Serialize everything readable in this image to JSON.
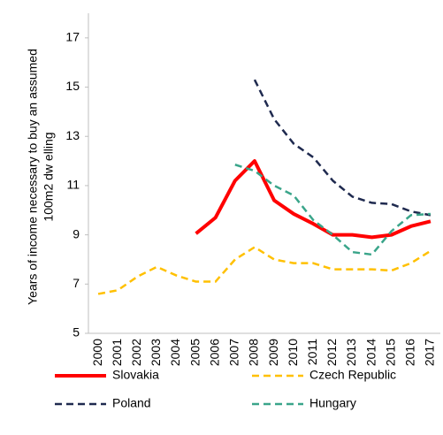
{
  "chart_data": {
    "type": "line",
    "ylabel": [
      "Years of income necessary to buy an assumed",
      "100m2 dw elling"
    ],
    "categories": [
      "2000",
      "2001",
      "2002",
      "2003",
      "2004",
      "2005",
      "2006",
      "2007",
      "2008",
      "2009",
      "2010",
      "2011",
      "2012",
      "2013",
      "2014",
      "2015",
      "2016",
      "2017"
    ],
    "series": [
      {
        "name": "Slovakia",
        "color": "#ff0000",
        "dash": false,
        "values": [
          null,
          null,
          null,
          null,
          null,
          9.05,
          9.7,
          11.2,
          12.0,
          10.4,
          9.85,
          9.45,
          9.0,
          9.0,
          8.9,
          9.0,
          9.35,
          9.55
        ]
      },
      {
        "name": "Czech Republic",
        "color": "#ffc000",
        "dash": true,
        "values": [
          6.6,
          6.75,
          7.3,
          7.7,
          7.35,
          7.1,
          7.1,
          8.0,
          8.5,
          8.0,
          7.85,
          7.85,
          7.6,
          7.6,
          7.6,
          7.55,
          7.85,
          8.35
        ]
      },
      {
        "name": "Poland",
        "color": "#1f2a4f",
        "dash": true,
        "values": [
          null,
          null,
          null,
          null,
          null,
          null,
          null,
          null,
          15.3,
          13.7,
          12.7,
          12.15,
          11.2,
          10.55,
          10.3,
          10.25,
          9.95,
          9.8
        ]
      },
      {
        "name": "Hungary",
        "color": "#3aa58a",
        "dash": true,
        "values": [
          null,
          null,
          null,
          null,
          null,
          null,
          null,
          11.85,
          11.6,
          11.0,
          10.6,
          9.6,
          9.0,
          8.3,
          8.2,
          9.15,
          9.8,
          9.85
        ]
      }
    ],
    "ylim": [
      5,
      18
    ],
    "yticks": [
      5,
      7,
      9,
      11,
      13,
      15,
      17
    ],
    "grid": false,
    "legend": "bottom"
  }
}
